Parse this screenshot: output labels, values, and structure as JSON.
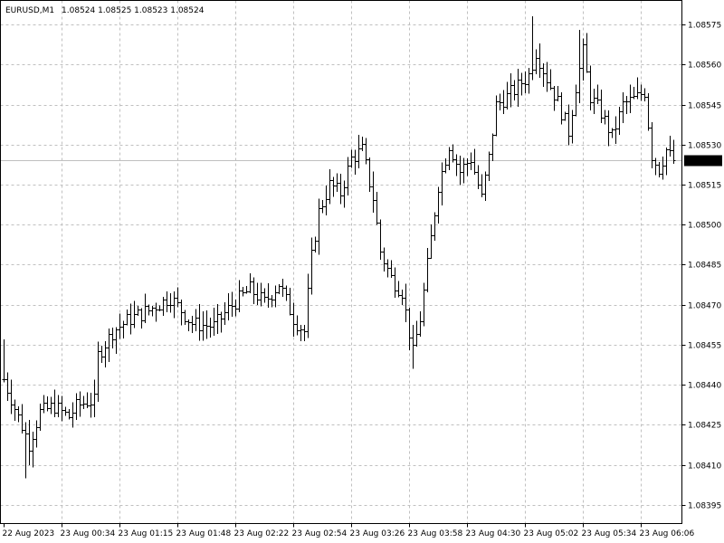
{
  "window": {
    "symbol_label": "EURUSD,M1",
    "ohlc_label": "1.08524 1.08525 1.08523 1.08524"
  },
  "colors": {
    "background": "#ffffff",
    "grid": "#c0c0c0",
    "bars": "#000000",
    "bid_line": "#c0c0c0",
    "price_tag_bg": "#000000",
    "price_tag_text": "#ffffff"
  },
  "chart_data": {
    "type": "ohlc",
    "grid": true,
    "grid_style": "dashed",
    "ylim": [
      1.08388,
      1.08584
    ],
    "y_ticks": [
      "1.08575",
      "1.08560",
      "1.08545",
      "1.08530",
      "1.08515",
      "1.08500",
      "1.08485",
      "1.08470",
      "1.08455",
      "1.08440",
      "1.08425",
      "1.08410",
      "1.08395"
    ],
    "x_ticks": [
      "22 Aug 2023",
      "23 Aug 00:34",
      "23 Aug 01:15",
      "23 Aug 01:48",
      "23 Aug 02:22",
      "23 Aug 02:54",
      "23 Aug 03:26",
      "23 Aug 03:58",
      "23 Aug 04:30",
      "23 Aug 05:02",
      "23 Aug 05:34",
      "23 Aug 06:06"
    ],
    "current_price": "1.08524",
    "bar_count": 186,
    "bars_per_tick": 16,
    "close_path": [
      {
        "i": 0,
        "v": 1.08442
      },
      {
        "i": 4,
        "v": 1.08428
      },
      {
        "i": 7,
        "v": 1.08418
      },
      {
        "i": 10,
        "v": 1.0843
      },
      {
        "i": 14,
        "v": 1.08432
      },
      {
        "i": 18,
        "v": 1.08428
      },
      {
        "i": 20,
        "v": 1.08432
      },
      {
        "i": 23,
        "v": 1.08434
      },
      {
        "i": 25,
        "v": 1.08434
      },
      {
        "i": 26,
        "v": 1.08451
      },
      {
        "i": 30,
        "v": 1.0846
      },
      {
        "i": 35,
        "v": 1.08465
      },
      {
        "i": 40,
        "v": 1.08468
      },
      {
        "i": 46,
        "v": 1.08473
      },
      {
        "i": 52,
        "v": 1.08463
      },
      {
        "i": 58,
        "v": 1.08462
      },
      {
        "i": 63,
        "v": 1.0847
      },
      {
        "i": 68,
        "v": 1.08476
      },
      {
        "i": 72,
        "v": 1.08471
      },
      {
        "i": 76,
        "v": 1.08478
      },
      {
        "i": 80,
        "v": 1.08465
      },
      {
        "i": 83,
        "v": 1.0846
      },
      {
        "i": 85,
        "v": 1.08488
      },
      {
        "i": 87,
        "v": 1.08505
      },
      {
        "i": 90,
        "v": 1.08515
      },
      {
        "i": 93,
        "v": 1.08512
      },
      {
        "i": 96,
        "v": 1.08525
      },
      {
        "i": 99,
        "v": 1.08528
      },
      {
        "i": 102,
        "v": 1.0851
      },
      {
        "i": 104,
        "v": 1.0849
      },
      {
        "i": 107,
        "v": 1.0848
      },
      {
        "i": 110,
        "v": 1.08475
      },
      {
        "i": 113,
        "v": 1.08452
      },
      {
        "i": 115,
        "v": 1.08465
      },
      {
        "i": 118,
        "v": 1.08495
      },
      {
        "i": 120,
        "v": 1.08515
      },
      {
        "i": 123,
        "v": 1.0853
      },
      {
        "i": 126,
        "v": 1.0852
      },
      {
        "i": 129,
        "v": 1.08525
      },
      {
        "i": 132,
        "v": 1.0851
      },
      {
        "i": 134,
        "v": 1.08525
      },
      {
        "i": 136,
        "v": 1.08545
      },
      {
        "i": 139,
        "v": 1.08548
      },
      {
        "i": 142,
        "v": 1.08552
      },
      {
        "i": 145,
        "v": 1.08556
      },
      {
        "i": 147,
        "v": 1.08565
      },
      {
        "i": 150,
        "v": 1.08555
      },
      {
        "i": 153,
        "v": 1.08546
      },
      {
        "i": 156,
        "v": 1.08535
      },
      {
        "i": 158,
        "v": 1.08552
      },
      {
        "i": 160,
        "v": 1.08565
      },
      {
        "i": 162,
        "v": 1.08548
      },
      {
        "i": 165,
        "v": 1.08542
      },
      {
        "i": 168,
        "v": 1.08533
      },
      {
        "i": 171,
        "v": 1.08545
      },
      {
        "i": 174,
        "v": 1.08547
      },
      {
        "i": 177,
        "v": 1.0855
      },
      {
        "i": 179,
        "v": 1.08526
      },
      {
        "i": 181,
        "v": 1.08521
      },
      {
        "i": 183,
        "v": 1.08528
      },
      {
        "i": 185,
        "v": 1.08524
      }
    ],
    "extremes": [
      {
        "i": 0,
        "high": 1.08457
      },
      {
        "i": 6,
        "low": 1.08405
      },
      {
        "i": 8,
        "low": 1.08409
      },
      {
        "i": 113,
        "low": 1.08446
      },
      {
        "i": 146,
        "high": 1.08578
      },
      {
        "i": 159,
        "high": 1.08573
      }
    ]
  }
}
